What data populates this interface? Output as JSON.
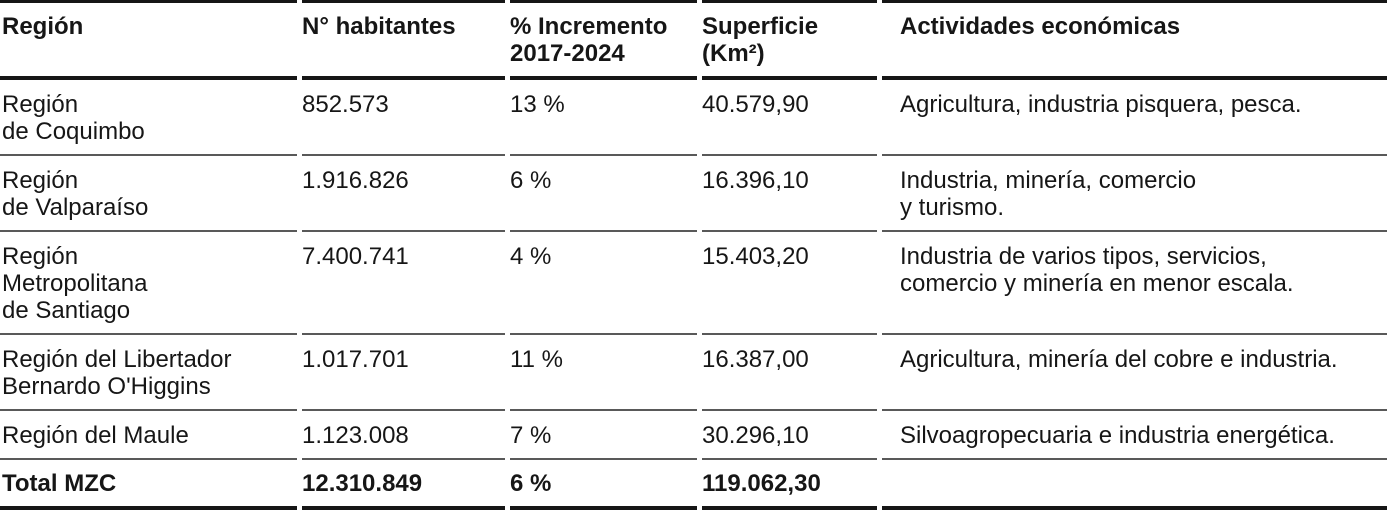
{
  "colors": {
    "background": "#ffffff",
    "text": "#161616",
    "heavy_rule": "#161616",
    "row_separator": "#595959"
  },
  "table": {
    "headers": [
      "Región",
      "N° habitantes",
      "% Incremento\n2017-2024",
      "Superficie\n(Km²)",
      "Actividades económicas"
    ],
    "rows": [
      {
        "region": "Región\nde Coquimbo",
        "habitantes": "852.573",
        "incremento": "13 %",
        "superficie": "40.579,90",
        "actividades": "Agricultura, industria pisquera, pesca."
      },
      {
        "region": "Región\nde Valparaíso",
        "habitantes": "1.916.826",
        "incremento": "6 %",
        "superficie": "16.396,10",
        "actividades": "Industria, minería, comercio\ny turismo."
      },
      {
        "region": "Región\nMetropolitana\nde Santiago",
        "habitantes": "7.400.741",
        "incremento": "4 %",
        "superficie": "15.403,20",
        "actividades": "Industria de varios tipos, servicios,\ncomercio y minería en menor escala."
      },
      {
        "region": "Región del Libertador\nBernardo O'Higgins",
        "habitantes": "1.017.701",
        "incremento": "11 %",
        "superficie": "16.387,00",
        "actividades": "Agricultura, minería del cobre e industria."
      },
      {
        "region": "Región del Maule",
        "habitantes": "1.123.008",
        "incremento": "7 %",
        "superficie": "30.296,10",
        "actividades": "Silvoagropecuaria e industria energética."
      }
    ],
    "total": {
      "region": "Total MZC",
      "habitantes": "12.310.849",
      "incremento": "6 %",
      "superficie": "119.062,30",
      "actividades": ""
    }
  },
  "chart_data": {
    "type": "table",
    "columns": [
      "Región",
      "N° habitantes",
      "% Incremento 2017-2024",
      "Superficie (Km²)",
      "Actividades económicas"
    ],
    "rows": [
      [
        "Región de Coquimbo",
        "852.573",
        "13 %",
        "40.579,90",
        "Agricultura, industria pisquera, pesca."
      ],
      [
        "Región de Valparaíso",
        "1.916.826",
        "6 %",
        "16.396,10",
        "Industria, minería, comercio y turismo."
      ],
      [
        "Región Metropolitana de Santiago",
        "7.400.741",
        "4 %",
        "15.403,20",
        "Industria de varios tipos, servicios, comercio y minería en menor escala."
      ],
      [
        "Región del Libertador Bernardo O'Higgins",
        "1.017.701",
        "11 %",
        "16.387,00",
        "Agricultura, minería del cobre e industria."
      ],
      [
        "Región del Maule",
        "1.123.008",
        "7 %",
        "30.296,10",
        "Silvoagropecuaria e industria energética."
      ],
      [
        "Total MZC",
        "12.310.849",
        "6 %",
        "119.062,30",
        ""
      ]
    ]
  }
}
